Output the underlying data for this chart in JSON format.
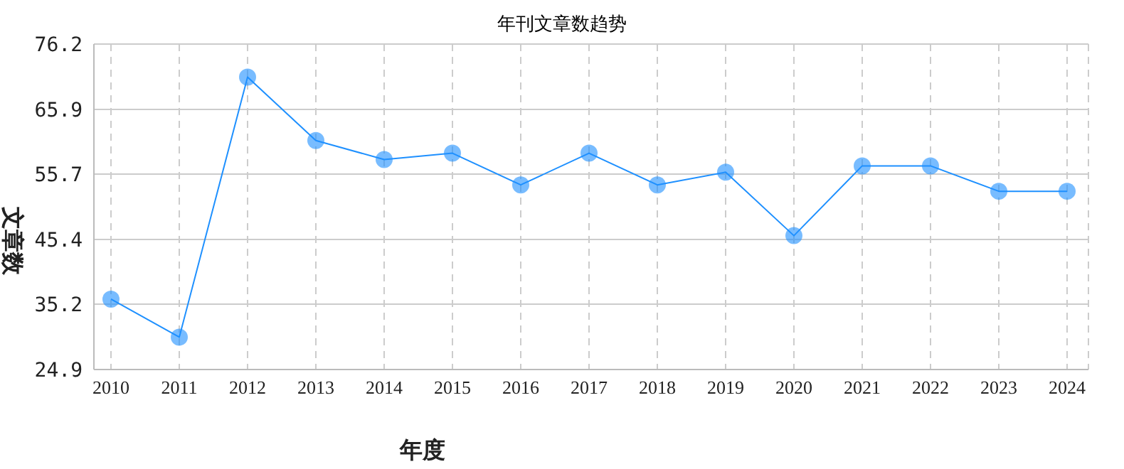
{
  "chart_data": {
    "type": "line",
    "title": "年刊文章数趋势",
    "xlabel": "年度",
    "ylabel": "文章数",
    "categories": [
      "2010",
      "2011",
      "2012",
      "2013",
      "2014",
      "2015",
      "2016",
      "2017",
      "2018",
      "2019",
      "2020",
      "2021",
      "2022",
      "2023",
      "2024"
    ],
    "series": [
      {
        "color": "#1e90ff",
        "values": [
          36,
          30,
          71,
          61,
          58,
          59,
          54,
          59,
          54,
          56,
          46,
          57,
          57,
          53,
          53
        ]
      }
    ],
    "ylim": [
      24.9,
      76.2
    ],
    "yticks": [
      24.9,
      35.2,
      45.4,
      55.7,
      65.9,
      76.2
    ],
    "grid": true,
    "marker": "circle",
    "line_style": "solid",
    "legend": false
  }
}
